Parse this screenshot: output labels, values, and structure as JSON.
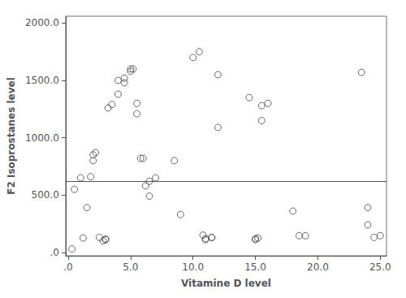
{
  "chart_data": {
    "type": "scatter",
    "x": [
      0.3,
      0.5,
      1.0,
      1.2,
      1.5,
      1.8,
      2.0,
      2.0,
      2.2,
      2.5,
      2.8,
      3.0,
      3.0,
      3.2,
      3.5,
      4.0,
      4.0,
      4.5,
      4.5,
      5.0,
      5.0,
      5.2,
      5.5,
      5.5,
      5.8,
      6.0,
      6.2,
      6.5,
      6.5,
      7.0,
      8.5,
      9.0,
      10.0,
      10.5,
      10.8,
      11.0,
      11.0,
      11.5,
      11.5,
      12.0,
      12.0,
      14.5,
      15.0,
      15.0,
      15.2,
      15.5,
      15.5,
      16.0,
      18.0,
      18.5,
      19.0,
      23.5,
      24.0,
      24.0,
      24.5,
      25.0
    ],
    "values": [
      30,
      550,
      650,
      125,
      390,
      660,
      800,
      850,
      870,
      130,
      100,
      110,
      115,
      1260,
      1290,
      1500,
      1380,
      1520,
      1480,
      1580,
      1600,
      1600,
      1210,
      1300,
      820,
      820,
      580,
      620,
      490,
      650,
      800,
      330,
      1700,
      1750,
      150,
      110,
      120,
      130,
      130,
      1090,
      1550,
      1350,
      110,
      120,
      125,
      1150,
      1280,
      1300,
      360,
      145,
      145,
      1570,
      390,
      240,
      130,
      145
    ],
    "color": "#444444",
    "marker": "hollow_circle",
    "hline": {
      "y": 620,
      "color": "#555555"
    },
    "xlim": [
      -0.2,
      25.5
    ],
    "ylim": [
      -30,
      2060
    ],
    "xticks": [
      {
        "value": 0,
        "label": ".0"
      },
      {
        "value": 5,
        "label": "5.0"
      },
      {
        "value": 10,
        "label": "10.0"
      },
      {
        "value": 15,
        "label": "15.0"
      },
      {
        "value": 20,
        "label": "20.0"
      },
      {
        "value": 25,
        "label": "25.0"
      }
    ],
    "yticks": [
      {
        "value": 0,
        "label": ".0"
      },
      {
        "value": 500,
        "label": "500.0"
      },
      {
        "value": 1000,
        "label": "1000.0"
      },
      {
        "value": 1500,
        "label": "1500.0"
      },
      {
        "value": 2000,
        "label": "2000.0"
      }
    ],
    "xlabel": "Vitamine D level",
    "ylabel": "F2 Isoprostanes level",
    "grid": false
  }
}
